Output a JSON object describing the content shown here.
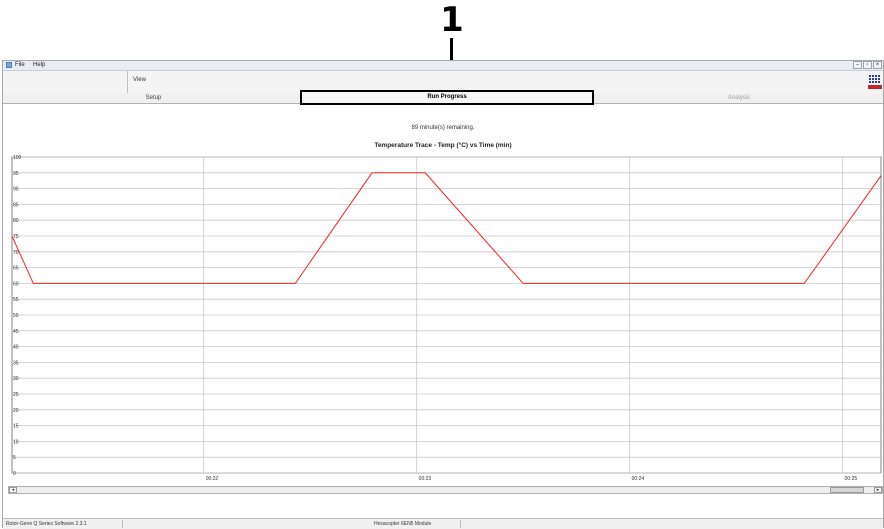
{
  "callout": {
    "number": "1"
  },
  "menu": {
    "items": [
      "File",
      "Help"
    ]
  },
  "window_controls": {
    "minimize": "–",
    "restore": "▫",
    "close": "×"
  },
  "toolbar": {
    "view_label": "View"
  },
  "tabs": [
    {
      "label": "Setup",
      "state": "normal"
    },
    {
      "label": "Run Progress",
      "state": "active"
    },
    {
      "label": "Analysis",
      "state": "disabled"
    }
  ],
  "run": {
    "remaining_text": "89 minute(s) remaining."
  },
  "chart_data": {
    "type": "line",
    "title": "Temperature Trace - Temp (°C) vs Time (min)",
    "xlabel": "",
    "ylabel": "",
    "ylim": [
      0,
      100
    ],
    "y_ticks": [
      0,
      5,
      10,
      15,
      20,
      25,
      30,
      35,
      40,
      45,
      50,
      55,
      60,
      65,
      70,
      75,
      80,
      85,
      90,
      95,
      100
    ],
    "xlim": [
      21.1,
      25.18
    ],
    "x_ticks": [
      {
        "value": 22,
        "label": "00:22"
      },
      {
        "value": 23,
        "label": "00:23"
      },
      {
        "value": 24,
        "label": "00:24"
      },
      {
        "value": 25,
        "label": "00:25"
      }
    ],
    "grid": true,
    "line_color": "#ff2020",
    "series": [
      {
        "x": [
          21.1,
          21.2,
          22.43,
          22.79,
          23.04,
          23.5,
          24.82,
          25.19,
          25.44,
          25.6
        ],
        "y": [
          75,
          60,
          60,
          95,
          95,
          60,
          60,
          95,
          95,
          60
        ]
      }
    ]
  },
  "scrollbar": {
    "left_arrow": "◂",
    "right_arrow": "▸"
  },
  "statusbar": {
    "software": "Rotor-Gene Q Series Software 2.3.1",
    "module": "Hexacopter 6EN5 Module"
  }
}
